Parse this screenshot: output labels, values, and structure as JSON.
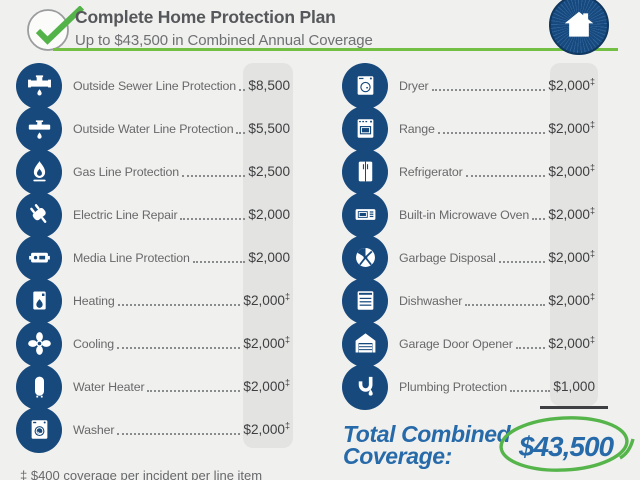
{
  "header": {
    "title": "Complete Home Protection Plan",
    "subtitle": "Up to $43,500 in Combined Annual Coverage",
    "check_icon": "check-icon",
    "badge_icon": "house-icon"
  },
  "columns": {
    "left": [
      {
        "icon": "sewer-pipe-icon",
        "label": "Outside Sewer Line Protection",
        "value": "$8,500",
        "mark": ""
      },
      {
        "icon": "water-pipe-icon",
        "label": "Outside Water Line Protection",
        "value": "$5,500",
        "mark": ""
      },
      {
        "icon": "gas-flame-icon",
        "label": "Gas Line Protection",
        "value": "$2,500",
        "mark": ""
      },
      {
        "icon": "electric-plug-icon",
        "label": "Electric Line Repair",
        "value": "$2,000",
        "mark": ""
      },
      {
        "icon": "media-box-icon",
        "label": "Media Line Protection",
        "value": "$2,000",
        "mark": ""
      },
      {
        "icon": "heating-icon",
        "label": "Heating",
        "value": "$2,000",
        "mark": "‡"
      },
      {
        "icon": "cooling-fan-icon",
        "label": "Cooling",
        "value": "$2,000",
        "mark": "‡"
      },
      {
        "icon": "water-heater-icon",
        "label": "Water Heater",
        "value": "$2,000",
        "mark": "‡"
      },
      {
        "icon": "washer-icon",
        "label": "Washer",
        "value": "$2,000",
        "mark": "‡"
      }
    ],
    "right": [
      {
        "icon": "dryer-icon",
        "label": "Dryer",
        "value": "$2,000",
        "mark": "‡"
      },
      {
        "icon": "range-icon",
        "label": "Range",
        "value": "$2,000",
        "mark": "‡"
      },
      {
        "icon": "refrigerator-icon",
        "label": "Refrigerator",
        "value": "$2,000",
        "mark": "‡"
      },
      {
        "icon": "microwave-icon",
        "label": "Built-in Microwave Oven",
        "value": "$2,000",
        "mark": "‡"
      },
      {
        "icon": "garbage-disposal-icon",
        "label": "Garbage Disposal",
        "value": "$2,000",
        "mark": "‡"
      },
      {
        "icon": "dishwasher-icon",
        "label": "Dishwasher",
        "value": "$2,000",
        "mark": "‡"
      },
      {
        "icon": "garage-door-icon",
        "label": "Garage Door Opener",
        "value": "$2,000",
        "mark": "‡"
      },
      {
        "icon": "plumbing-icon",
        "label": "Plumbing Protection",
        "value": "$1,000",
        "mark": ""
      }
    ]
  },
  "total": {
    "label": "Total Combined Coverage:",
    "value": "$43,500"
  },
  "footnote": "‡ $400 coverage per incident per line item",
  "colors": {
    "background": "#f0f0ee",
    "icon_navy": "#17497d",
    "accent_green": "#5cb54a",
    "rule_green": "#72bf44",
    "total_blue": "#276aa9",
    "price_column_bg": "#e3e3e1"
  }
}
